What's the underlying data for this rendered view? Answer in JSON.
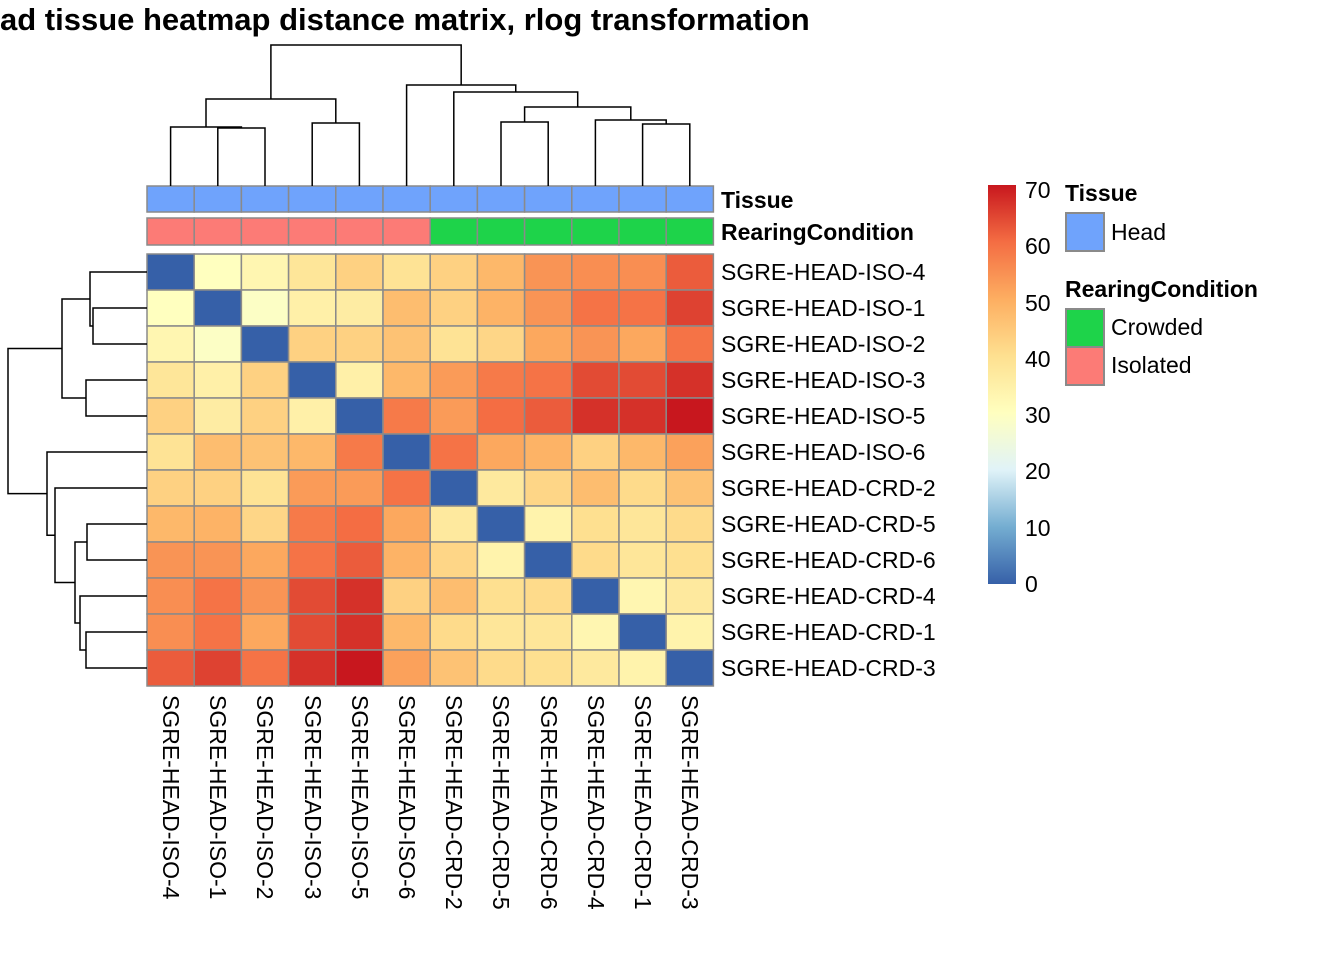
{
  "chart_data": {
    "type": "heatmap",
    "title": "ad tissue heatmap distance matrix, rlog transformation",
    "rows": [
      "SGRE-HEAD-ISO-4",
      "SGRE-HEAD-ISO-1",
      "SGRE-HEAD-ISO-2",
      "SGRE-HEAD-ISO-3",
      "SGRE-HEAD-ISO-5",
      "SGRE-HEAD-ISO-6",
      "SGRE-HEAD-CRD-2",
      "SGRE-HEAD-CRD-5",
      "SGRE-HEAD-CRD-6",
      "SGRE-HEAD-CRD-4",
      "SGRE-HEAD-CRD-1",
      "SGRE-HEAD-CRD-3"
    ],
    "columns": [
      "SGRE-HEAD-ISO-4",
      "SGRE-HEAD-ISO-1",
      "SGRE-HEAD-ISO-2",
      "SGRE-HEAD-ISO-3",
      "SGRE-HEAD-ISO-5",
      "SGRE-HEAD-ISO-6",
      "SGRE-HEAD-CRD-2",
      "SGRE-HEAD-CRD-5",
      "SGRE-HEAD-CRD-6",
      "SGRE-HEAD-CRD-4",
      "SGRE-HEAD-CRD-1",
      "SGRE-HEAD-CRD-3"
    ],
    "values": [
      [
        0,
        30,
        33,
        38,
        43,
        39,
        43,
        48,
        54,
        55,
        55,
        62
      ],
      [
        30,
        0,
        29,
        35,
        36,
        47,
        43,
        49,
        54,
        59,
        59,
        65
      ],
      [
        33,
        29,
        0,
        43,
        43,
        46,
        39,
        42,
        51,
        54,
        51,
        59
      ],
      [
        38,
        35,
        43,
        0,
        35,
        48,
        53,
        58,
        59,
        64,
        64,
        67
      ],
      [
        43,
        36,
        43,
        35,
        0,
        58,
        53,
        60,
        62,
        67,
        67,
        70
      ],
      [
        39,
        47,
        46,
        48,
        58,
        0,
        59,
        51,
        49,
        43,
        48,
        52
      ],
      [
        43,
        43,
        39,
        53,
        53,
        59,
        0,
        37,
        42,
        47,
        41,
        46
      ],
      [
        48,
        49,
        42,
        58,
        60,
        51,
        37,
        0,
        34,
        40,
        38,
        41
      ],
      [
        54,
        54,
        51,
        59,
        62,
        49,
        42,
        34,
        0,
        41,
        38,
        40
      ],
      [
        55,
        59,
        54,
        64,
        67,
        43,
        47,
        40,
        41,
        0,
        33,
        37
      ],
      [
        55,
        59,
        51,
        64,
        67,
        48,
        41,
        38,
        38,
        33,
        0,
        34
      ],
      [
        62,
        65,
        59,
        67,
        70,
        52,
        46,
        41,
        40,
        37,
        34,
        0
      ]
    ],
    "color_scale": {
      "range": [
        0,
        70
      ],
      "ticks": [
        "0",
        "10",
        "20",
        "30",
        "40",
        "50",
        "60",
        "70"
      ],
      "colors": [
        "#3660A8",
        "#74ADD1",
        "#E0F3F8",
        "#FFFFBF",
        "#FEE090",
        "#FDAE61",
        "#F46D43",
        "#C8171E"
      ]
    },
    "annotations": {
      "Tissue": {
        "label": "Tissue",
        "values": [
          "Head",
          "Head",
          "Head",
          "Head",
          "Head",
          "Head",
          "Head",
          "Head",
          "Head",
          "Head",
          "Head",
          "Head"
        ]
      },
      "RearingCondition": {
        "label": "RearingCondition",
        "values": [
          "Isolated",
          "Isolated",
          "Isolated",
          "Isolated",
          "Isolated",
          "Isolated",
          "Crowded",
          "Crowded",
          "Crowded",
          "Crowded",
          "Crowded",
          "Crowded"
        ]
      }
    },
    "legend": {
      "tissue_title": "Tissue",
      "tissue_items": [
        {
          "label": "Head",
          "color": "#6FA3FC"
        }
      ],
      "rearing_title": "RearingCondition",
      "rearing_items": [
        {
          "label": "Crowded",
          "color": "#1ED34A"
        },
        {
          "label": "Isolated",
          "color": "#FC7B76"
        }
      ]
    },
    "dendrogram": "hierarchical clustering on rows and columns"
  }
}
